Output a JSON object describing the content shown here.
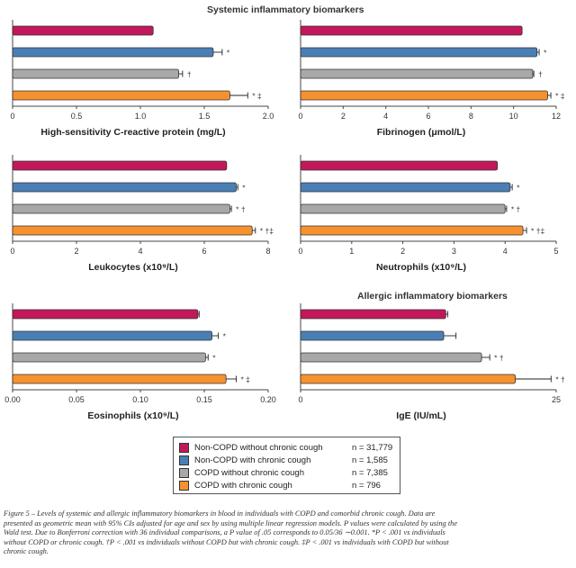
{
  "section_titles": {
    "systemic": "Systemic inflammatory biomarkers",
    "allergic": "Allergic inflammatory biomarkers"
  },
  "colors": {
    "non_copd_no_cough": "#c2185b",
    "non_copd_cough": "#4a7fb5",
    "copd_no_cough": "#a8a8a8",
    "copd_cough": "#f5922f"
  },
  "legend": [
    {
      "label": "Non-COPD without chronic cough",
      "n": "n = 31,779",
      "color": "#c2185b"
    },
    {
      "label": "Non-COPD with chronic cough",
      "n": "n = 1,585",
      "color": "#4a7fb5"
    },
    {
      "label": "COPD without chronic cough",
      "n": "n = 7,385",
      "color": "#a8a8a8"
    },
    {
      "label": "COPD with chronic cough",
      "n": "n = 796",
      "color": "#f5922f"
    }
  ],
  "chart_data": [
    {
      "type": "bar",
      "orientation": "horizontal",
      "xlabel": "High-sensitivity C-reactive protein (mg/L)",
      "xlim": [
        0,
        2.0
      ],
      "ticks": [
        "0",
        "0.5",
        "1.0",
        "1.5",
        "2.0"
      ],
      "tick_values": [
        0,
        0.5,
        1.0,
        1.5,
        2.0
      ],
      "categories": [
        "Non-COPD without chronic cough",
        "Non-COPD with chronic cough",
        "COPD without chronic cough",
        "COPD with chronic cough"
      ],
      "values": [
        1.1,
        1.57,
        1.3,
        1.7
      ],
      "ci_upper": [
        1.1,
        1.64,
        1.33,
        1.84
      ],
      "annotations": [
        "",
        "*",
        "†",
        "* ‡"
      ]
    },
    {
      "type": "bar",
      "orientation": "horizontal",
      "xlabel": "Fibrinogen (μmol/L)",
      "xlim": [
        0,
        12
      ],
      "ticks": [
        "0",
        "2",
        "4",
        "6",
        "8",
        "10",
        "12"
      ],
      "tick_values": [
        0,
        2,
        4,
        6,
        8,
        10,
        12
      ],
      "categories": [
        "Non-COPD without chronic cough",
        "Non-COPD with chronic cough",
        "COPD without chronic cough",
        "COPD with chronic cough"
      ],
      "values": [
        10.4,
        11.1,
        10.9,
        11.6
      ],
      "ci_upper": [
        10.4,
        11.2,
        10.95,
        11.75
      ],
      "annotations": [
        "",
        "*",
        "†",
        "* ‡"
      ]
    },
    {
      "type": "bar",
      "orientation": "horizontal",
      "xlabel": "Leukocytes (x10⁹/L)",
      "xlim": [
        0,
        8
      ],
      "ticks": [
        "0",
        "2",
        "4",
        "6",
        "8"
      ],
      "tick_values": [
        0,
        2,
        4,
        6,
        8
      ],
      "categories": [
        "Non-COPD without chronic cough",
        "Non-COPD with chronic cough",
        "COPD without chronic cough",
        "COPD with chronic cough"
      ],
      "values": [
        6.7,
        7.0,
        6.8,
        7.5
      ],
      "ci_upper": [
        6.7,
        7.05,
        6.85,
        7.6
      ],
      "annotations": [
        "",
        "*",
        "* †",
        "* †‡"
      ]
    },
    {
      "type": "bar",
      "orientation": "horizontal",
      "xlabel": "Neutrophils (x10⁹/L)",
      "xlim": [
        0,
        5
      ],
      "ticks": [
        "0",
        "1",
        "2",
        "3",
        "4",
        "5"
      ],
      "tick_values": [
        0,
        1,
        2,
        3,
        4,
        5
      ],
      "categories": [
        "Non-COPD without chronic cough",
        "Non-COPD with chronic cough",
        "COPD without chronic cough",
        "COPD with chronic cough"
      ],
      "values": [
        3.85,
        4.1,
        4.0,
        4.35
      ],
      "ci_upper": [
        3.85,
        4.14,
        4.03,
        4.42
      ],
      "annotations": [
        "",
        "*",
        "* †",
        "* †‡"
      ]
    },
    {
      "type": "bar",
      "orientation": "horizontal",
      "xlabel": "Eosinophils (x10⁹/L)",
      "xlim": [
        0,
        0.2
      ],
      "ticks": [
        "0.00",
        "0.05",
        "0.10",
        "0.15",
        "0.20"
      ],
      "tick_values": [
        0,
        0.05,
        0.1,
        0.15,
        0.2
      ],
      "categories": [
        "Non-COPD without chronic cough",
        "Non-COPD with chronic cough",
        "COPD without chronic cough",
        "COPD with chronic cough"
      ],
      "values": [
        0.145,
        0.156,
        0.151,
        0.167
      ],
      "ci_upper": [
        0.146,
        0.161,
        0.153,
        0.175
      ],
      "annotations": [
        "",
        "*",
        "*",
        "* ‡"
      ]
    },
    {
      "type": "bar",
      "orientation": "horizontal",
      "xlabel": "IgE (IU/mL)",
      "xlim": [
        0,
        25
      ],
      "ticks": [
        "0",
        "25"
      ],
      "tick_values": [
        0,
        25
      ],
      "categories": [
        "Non-COPD without chronic cough",
        "Non-COPD with chronic cough",
        "COPD without chronic cough",
        "COPD with chronic cough"
      ],
      "values": [
        14.2,
        14.0,
        17.7,
        21.0
      ],
      "ci_upper": [
        14.4,
        15.2,
        18.5,
        24.5
      ],
      "annotations": [
        "",
        "",
        "* †",
        "* †"
      ]
    }
  ],
  "caption": {
    "line1": "Figure 5 – Levels of systemic and allergic inflammatory biomarkers in blood in individuals with COPD and comorbid chronic cough. Data are",
    "line2": "presented as geometric mean with 95% CIs adjusted for age and sex by using multiple linear regression models. P values were calculated by using the",
    "line3": "Wald test. Due to Bonferroni correction with 36 individual comparisons, a P value of .05 corresponds to 0.05/36 ∼0.001. *P < .001 vs individuals",
    "line4": "without COPD or chronic cough. †P < .001 vs individuals without COPD but with chronic cough. ‡P < .001 vs individuals with COPD but without",
    "line5": "chronic cough."
  }
}
